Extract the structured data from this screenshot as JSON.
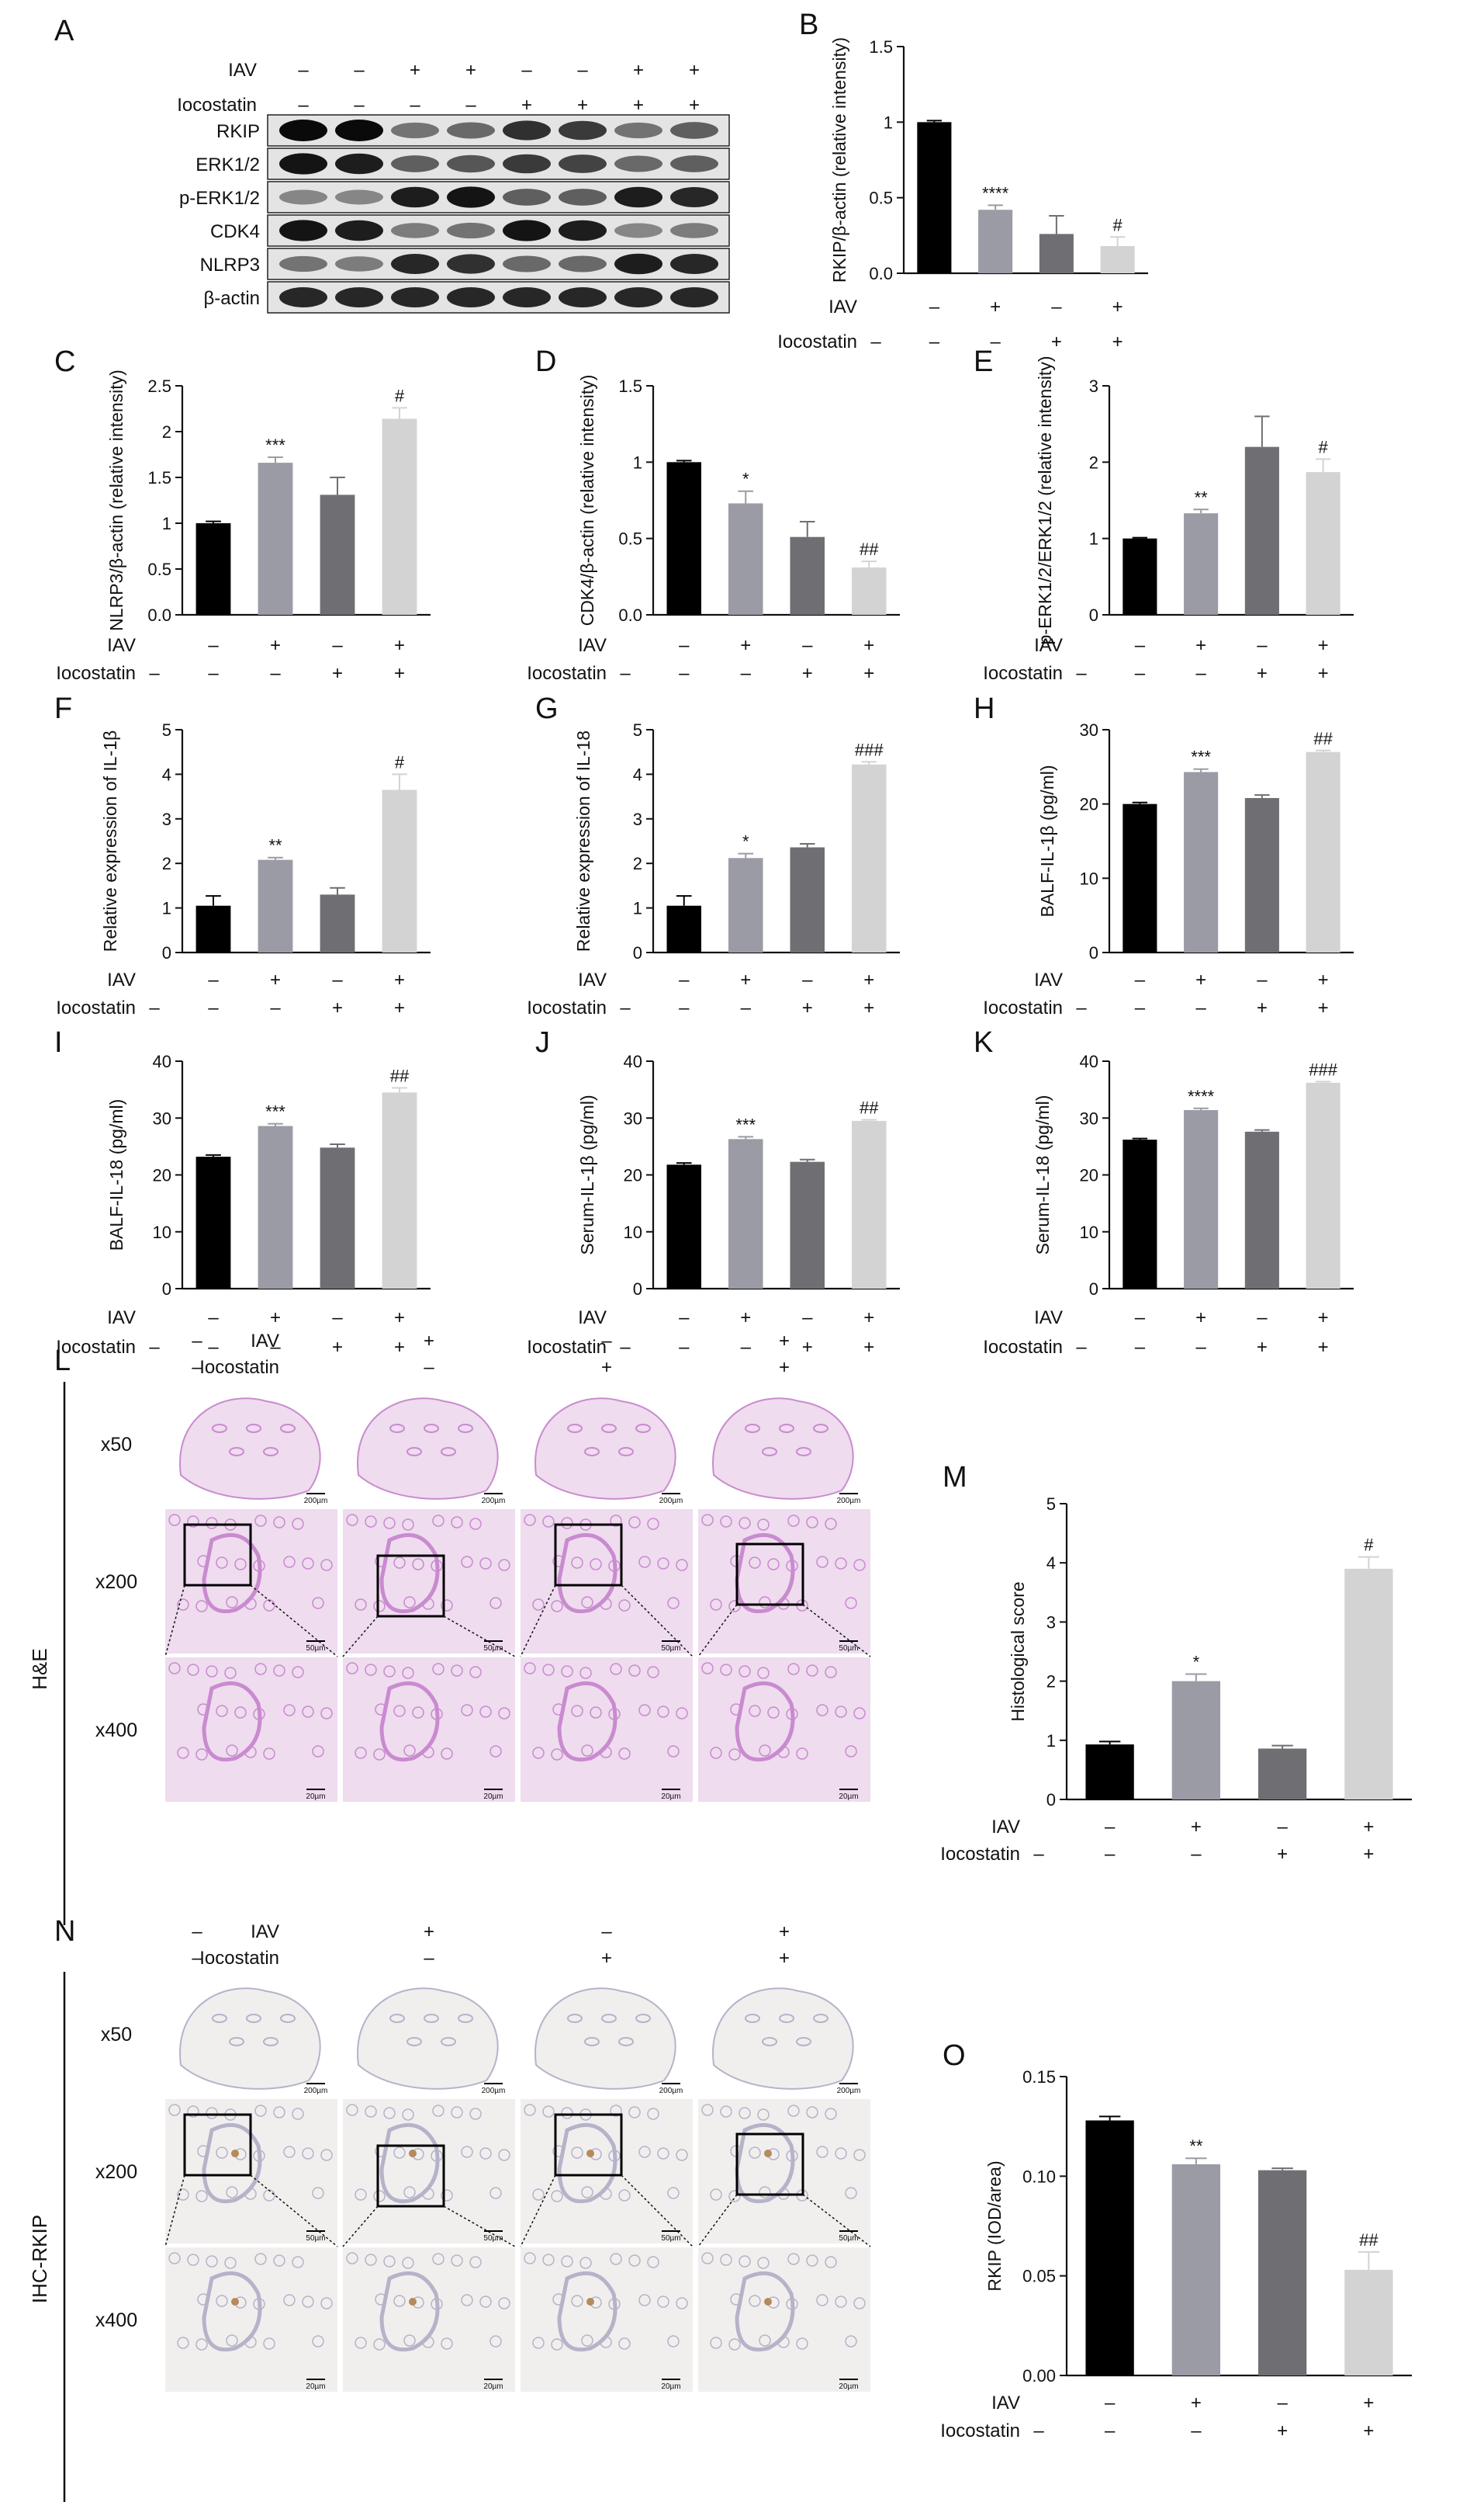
{
  "colors": {
    "g1": "#000000",
    "g2": "#9b9ba6",
    "g3": "#6e6e73",
    "g4": "#d3d3d3",
    "he_bg": "#efdcef",
    "he_tissue": "#c98bcf",
    "ihc_bg": "#f1efee",
    "ihc_tissue": "#b6b3c9",
    "ihc_brown": "#b58a5c"
  },
  "panel_letters": {
    "a": "A",
    "b": "B",
    "c": "C",
    "d": "D",
    "e": "E",
    "f": "F",
    "g": "G",
    "h": "H",
    "i": "I",
    "j": "J",
    "k": "K",
    "l": "L",
    "m": "M",
    "n": "N",
    "o": "O"
  },
  "row_labels": {
    "iav": "IAV",
    "ico": "Iocostatin"
  },
  "group_signs": {
    "iav": [
      "–",
      "+",
      "–",
      "+"
    ],
    "ico": [
      "–",
      "–",
      "+",
      "+"
    ]
  },
  "blot": {
    "lane_iav": [
      "–",
      "–",
      "+",
      "+",
      "–",
      "–",
      "+",
      "+"
    ],
    "lane_ico": [
      "–",
      "–",
      "–",
      "–",
      "+",
      "+",
      "+",
      "+"
    ],
    "proteins": [
      "RKIP",
      "ERK1/2",
      "p-ERK1/2",
      "CDK4",
      "NLRP3",
      "β-actin"
    ]
  },
  "histology": {
    "he_side": "H&E",
    "ihc_side": "IHC-RKIP",
    "mags": [
      "x50",
      "x200",
      "x400"
    ],
    "scales": [
      "200µm",
      "50µm",
      "20µm"
    ]
  },
  "chart_data": [
    {
      "type": "bar",
      "panel": "B",
      "ylabel": "RKIP/β-actin (relative intensity)",
      "ylim": [
        0,
        1.5
      ],
      "yticks": [
        0.0,
        0.5,
        1.0,
        1.5
      ],
      "values": [
        1.0,
        0.42,
        0.26,
        0.18
      ],
      "errors": [
        0.01,
        0.03,
        0.12,
        0.06
      ],
      "annotations": [
        "",
        "****",
        "",
        "#"
      ]
    },
    {
      "type": "bar",
      "panel": "C",
      "ylabel": "NLRP3/β-actin (relative intensity)",
      "ylim": [
        0,
        2.5
      ],
      "yticks": [
        0.0,
        0.5,
        1.0,
        1.5,
        2.0,
        2.5
      ],
      "values": [
        1.0,
        1.66,
        1.31,
        2.14
      ],
      "errors": [
        0.02,
        0.06,
        0.19,
        0.12
      ],
      "annotations": [
        "",
        "***",
        "",
        "#"
      ]
    },
    {
      "type": "bar",
      "panel": "D",
      "ylabel": "CDK4/β-actin (relative intensity)",
      "ylim": [
        0,
        1.5
      ],
      "yticks": [
        0.0,
        0.5,
        1.0,
        1.5
      ],
      "values": [
        1.0,
        0.73,
        0.51,
        0.31
      ],
      "errors": [
        0.01,
        0.08,
        0.1,
        0.04
      ],
      "annotations": [
        "",
        "*",
        "",
        "##"
      ]
    },
    {
      "type": "bar",
      "panel": "E",
      "ylabel": "p-ERK1/2/ERK1/2 (relative intensity)",
      "ylim": [
        0,
        3
      ],
      "yticks": [
        0,
        1,
        2,
        3
      ],
      "values": [
        1.0,
        1.33,
        2.2,
        1.87
      ],
      "errors": [
        0.01,
        0.05,
        0.4,
        0.17
      ],
      "annotations": [
        "",
        "**",
        "",
        "#"
      ]
    },
    {
      "type": "bar",
      "panel": "F",
      "ylabel": "Relative expression of IL-1β",
      "ylim": [
        0,
        5
      ],
      "yticks": [
        0,
        1,
        2,
        3,
        4,
        5
      ],
      "values": [
        1.05,
        2.08,
        1.3,
        3.65
      ],
      "errors": [
        0.22,
        0.05,
        0.15,
        0.35
      ],
      "annotations": [
        "",
        "**",
        "",
        "#"
      ]
    },
    {
      "type": "bar",
      "panel": "G",
      "ylabel": "Relative expression of IL-18",
      "ylim": [
        0,
        5
      ],
      "yticks": [
        0,
        1,
        2,
        3,
        4,
        5
      ],
      "values": [
        1.05,
        2.12,
        2.36,
        4.22
      ],
      "errors": [
        0.22,
        0.1,
        0.08,
        0.06
      ],
      "annotations": [
        "",
        "*",
        "",
        "###"
      ]
    },
    {
      "type": "bar",
      "panel": "H",
      "ylabel": "BALF-IL-1β (pg/ml)",
      "ylim": [
        0,
        30
      ],
      "yticks": [
        0,
        10,
        20,
        30
      ],
      "values": [
        20.0,
        24.3,
        20.8,
        27.0
      ],
      "errors": [
        0.2,
        0.4,
        0.4,
        0.2
      ],
      "annotations": [
        "",
        "***",
        "",
        "##"
      ]
    },
    {
      "type": "bar",
      "panel": "I",
      "ylabel": "BALF-IL-18 (pg/ml)",
      "ylim": [
        0,
        40
      ],
      "yticks": [
        0,
        10,
        20,
        30,
        40
      ],
      "values": [
        23.2,
        28.6,
        24.8,
        34.5
      ],
      "errors": [
        0.3,
        0.4,
        0.6,
        0.8
      ],
      "annotations": [
        "",
        "***",
        "",
        "##"
      ]
    },
    {
      "type": "bar",
      "panel": "J",
      "ylabel": "Serum-IL-1β (pg/ml)",
      "ylim": [
        0,
        40
      ],
      "yticks": [
        0,
        10,
        20,
        30,
        40
      ],
      "values": [
        21.8,
        26.3,
        22.3,
        29.5
      ],
      "errors": [
        0.3,
        0.4,
        0.4,
        0.2
      ],
      "annotations": [
        "",
        "***",
        "",
        "##"
      ]
    },
    {
      "type": "bar",
      "panel": "K",
      "ylabel": "Serum-IL-18 (pg/ml)",
      "ylim": [
        0,
        40
      ],
      "yticks": [
        0,
        10,
        20,
        30,
        40
      ],
      "values": [
        26.2,
        31.4,
        27.6,
        36.2
      ],
      "errors": [
        0.2,
        0.3,
        0.3,
        0.2
      ],
      "annotations": [
        "",
        "****",
        "",
        "###"
      ]
    },
    {
      "type": "bar",
      "panel": "M",
      "ylabel": "Histological score",
      "ylim": [
        0,
        5
      ],
      "yticks": [
        0,
        1,
        2,
        3,
        4,
        5
      ],
      "values": [
        0.93,
        2.0,
        0.86,
        3.9
      ],
      "errors": [
        0.05,
        0.12,
        0.05,
        0.2
      ],
      "annotations": [
        "",
        "*",
        "",
        "#"
      ]
    },
    {
      "type": "bar",
      "panel": "O",
      "ylabel": "RKIP (IOD/area)",
      "ylim": [
        0,
        0.15
      ],
      "yticks": [
        "0.00",
        "0.05",
        "0.10",
        "0.15"
      ],
      "values": [
        0.128,
        0.106,
        0.103,
        0.053
      ],
      "errors": [
        0.002,
        0.003,
        0.001,
        0.009
      ],
      "annotations": [
        "",
        "**",
        "",
        "##"
      ]
    }
  ]
}
